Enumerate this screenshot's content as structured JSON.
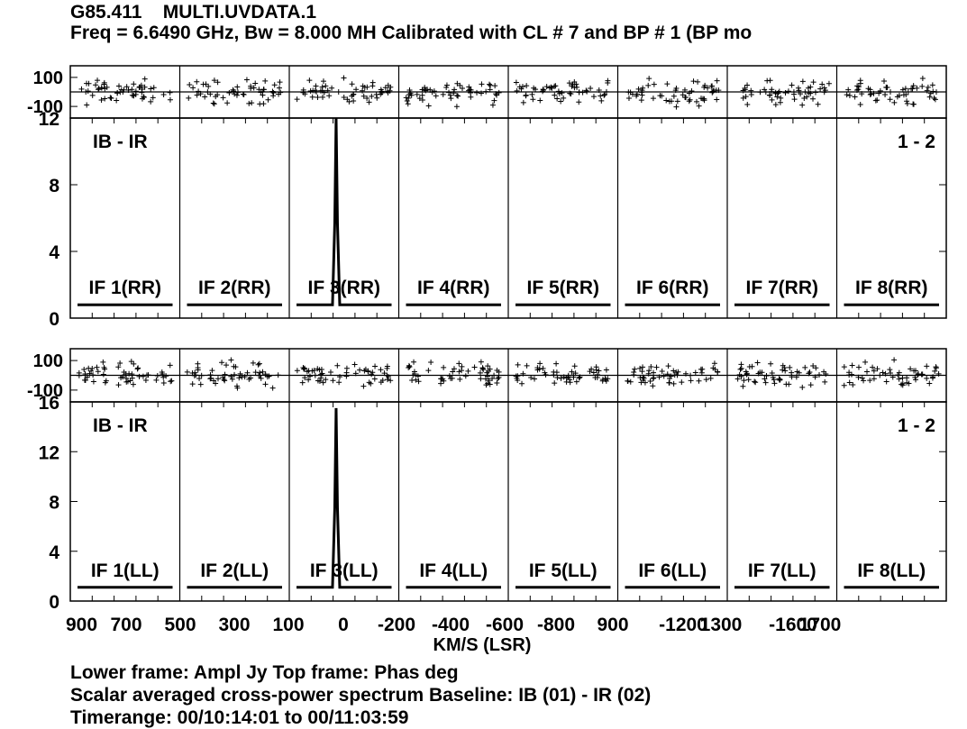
{
  "header": {
    "source": "G85.411",
    "file": "MULTI.UVDATA.1",
    "line2": "Freq = 6.6490 GHz, Bw = 8.000 MH   Calibrated with CL # 7 and BP # 1 (BP mo"
  },
  "footer": {
    "line1": "Lower frame: Ampl Jy   Top frame: Phas deg",
    "line2": "Scalar averaged cross-power spectrum    Baseline: IB (01) - IR (02)",
    "line3": "Timerange: 00/10:14:01 to 00/11:03:59"
  },
  "chart_data": {
    "type": "line",
    "xlabel": "KM/S (LSR)",
    "x_tick_labels": [
      "900",
      "700",
      "500",
      "300",
      "100",
      "0",
      "-200",
      "-400",
      "-600",
      "-800",
      "900",
      "-1200",
      "1300",
      "-1600",
      "1700"
    ],
    "panels": [
      {
        "name": "IF 1",
        "xlim": [
          900,
          500
        ]
      },
      {
        "name": "IF 2",
        "xlim": [
          500,
          100
        ]
      },
      {
        "name": "IF 3",
        "xlim": [
          100,
          -200
        ]
      },
      {
        "name": "IF 4",
        "xlim": [
          -200,
          -600
        ]
      },
      {
        "name": "IF 5",
        "xlim": [
          -600,
          -900
        ]
      },
      {
        "name": "IF 6",
        "xlim": [
          -900,
          -1300
        ]
      },
      {
        "name": "IF 7",
        "xlim": [
          -1300,
          -1700
        ]
      },
      {
        "name": "IF 8",
        "xlim": [
          -1700,
          -2100
        ]
      }
    ],
    "rows": [
      {
        "polarization": "RR",
        "baseline_left": "IB - IR",
        "baseline_right": "1 - 2",
        "phase_axis": {
          "ticks": [
            "100",
            "-100"
          ],
          "ylim": [
            -180,
            180
          ]
        },
        "amp_axis": {
          "ticks": [
            0,
            4,
            8,
            12
          ],
          "ylim": [
            0,
            12
          ]
        },
        "if_labels": [
          "IF 1(RR)",
          "IF 2(RR)",
          "IF 3(RR)",
          "IF 4(RR)",
          "IF 5(RR)",
          "IF 6(RR)",
          "IF 7(RR)",
          "IF 8(RR)"
        ],
        "baseline_amplitude": 0.8,
        "peak": {
          "if_index": 2,
          "velocity": -25,
          "amplitude": 12.0,
          "flank": 5.7
        }
      },
      {
        "polarization": "LL",
        "baseline_left": "IB - IR",
        "baseline_right": "1 - 2",
        "phase_axis": {
          "ticks": [
            "100",
            "-100"
          ],
          "ylim": [
            -180,
            180
          ]
        },
        "amp_axis": {
          "ticks": [
            0,
            4,
            8,
            12,
            16
          ],
          "ylim": [
            0,
            16
          ]
        },
        "if_labels": [
          "IF 1(LL)",
          "IF 2(LL)",
          "IF 3(LL)",
          "IF 4(LL)",
          "IF 5(LL)",
          "IF 6(LL)",
          "IF 7(LL)",
          "IF 8(LL)"
        ],
        "baseline_amplitude": 1.1,
        "peak": {
          "if_index": 2,
          "velocity": -25,
          "amplitude": 15.5,
          "flank": 7.5
        }
      }
    ]
  }
}
